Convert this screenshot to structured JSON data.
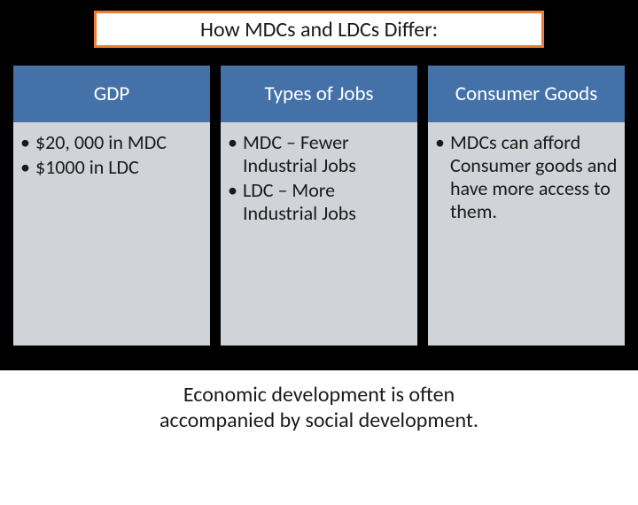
{
  "title": "How MDCs and LDCs Differ:",
  "columns": [
    {
      "header": "GDP",
      "bullets": [
        "$20, 000 in MDC",
        "$1000 in LDC"
      ]
    },
    {
      "header": "Types of Jobs",
      "bullets": [
        "MDC – Fewer Industrial Jobs",
        "LDC – More Industrial Jobs"
      ]
    },
    {
      "header": "Consumer Goods",
      "bullets": [
        "MDCs can afford Consumer goods and have more access to them."
      ]
    }
  ],
  "footer_line1": "Economic development is often",
  "footer_line2": "accompanied by social development.",
  "colors": {
    "background": "#000000",
    "title_border": "#ed7d31",
    "title_bg": "#ffffff",
    "header_bg": "#4472a8",
    "header_text": "#ffffff",
    "body_bg": "#d0d4d8",
    "body_text": "#1a1a1a",
    "footer_bg": "#ffffff"
  }
}
